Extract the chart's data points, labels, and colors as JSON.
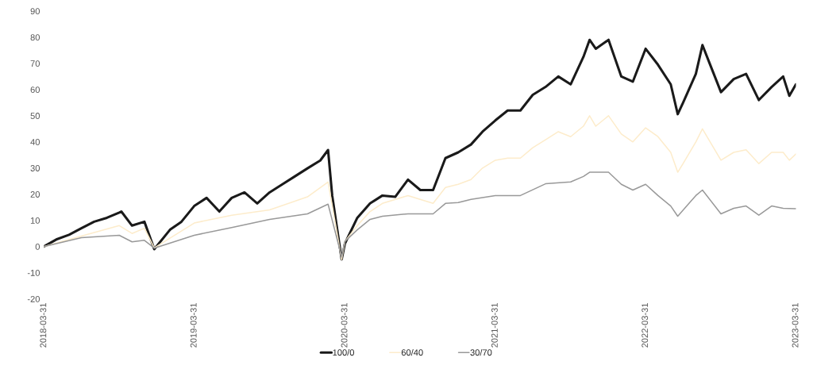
{
  "chart_data": {
    "type": "line",
    "xlim": [
      "2018-03-31",
      "2023-03-31"
    ],
    "xticks": [
      "2018-03-31",
      "2019-03-31",
      "2020-03-31",
      "2021-03-31",
      "2022-03-31",
      "2023-03-31"
    ],
    "ylim": [
      -20,
      90
    ],
    "yticks": [
      -20,
      -10,
      0,
      10,
      20,
      30,
      40,
      50,
      60,
      70,
      80,
      90
    ],
    "grid": false,
    "legend": "bottom",
    "line_style": "solid",
    "marker": "none",
    "series": [
      {
        "name": "100/0",
        "color": "#1a1a1a",
        "x": [
          "2018-03-31",
          "2018-04-30",
          "2018-05-31",
          "2018-06-30",
          "2018-07-31",
          "2018-08-31",
          "2018-09-30",
          "2018-10-05",
          "2018-10-31",
          "2018-11-30",
          "2018-12-24",
          "2019-01-31",
          "2019-02-28",
          "2019-03-31",
          "2019-04-30",
          "2019-05-31",
          "2019-06-30",
          "2019-07-31",
          "2019-08-31",
          "2019-09-30",
          "2019-10-31",
          "2019-11-30",
          "2019-12-31",
          "2020-01-31",
          "2020-02-19",
          "2020-02-29",
          "2020-03-23",
          "2020-03-31",
          "2020-04-30",
          "2020-05-31",
          "2020-06-30",
          "2020-07-31",
          "2020-08-31",
          "2020-09-30",
          "2020-10-31",
          "2020-11-30",
          "2020-12-31",
          "2021-01-31",
          "2021-02-28",
          "2021-03-31",
          "2021-04-30",
          "2021-05-31",
          "2021-06-30",
          "2021-07-31",
          "2021-08-31",
          "2021-09-30",
          "2021-10-31",
          "2021-11-15",
          "2021-11-30",
          "2021-12-31",
          "2022-01-31",
          "2022-02-28",
          "2022-03-31",
          "2022-04-30",
          "2022-05-31",
          "2022-06-17",
          "2022-06-30",
          "2022-07-31",
          "2022-08-16",
          "2022-08-31",
          "2022-09-30",
          "2022-10-31",
          "2022-11-30",
          "2022-12-31",
          "2023-01-31",
          "2023-02-28",
          "2023-03-15",
          "2023-03-31"
        ],
        "values": [
          0,
          2.7,
          4.5,
          7,
          9.5,
          11,
          13,
          13.4,
          8,
          9.5,
          -1,
          6.4,
          9.5,
          15.5,
          18.6,
          13.4,
          18.6,
          20.7,
          16.5,
          20.7,
          23.8,
          26.8,
          29.9,
          32.9,
          36.9,
          19.5,
          -4.9,
          1.2,
          11,
          16.5,
          19.5,
          19,
          25.6,
          21.6,
          21.6,
          33.8,
          36,
          39,
          43.9,
          48.2,
          52,
          52,
          58,
          61,
          65,
          62,
          72.5,
          79,
          75.6,
          79,
          65,
          63,
          75.6,
          69.5,
          62,
          50.6,
          55,
          66,
          77,
          71,
          59,
          64,
          66,
          56,
          61,
          65,
          57.6,
          62
        ]
      },
      {
        "name": "60/40",
        "color": "#fdeccb",
        "x": [
          "2018-03-31",
          "2018-06-30",
          "2018-09-30",
          "2018-10-31",
          "2018-11-30",
          "2018-12-24",
          "2019-03-31",
          "2019-06-30",
          "2019-09-30",
          "2019-12-31",
          "2020-02-19",
          "2020-03-23",
          "2020-03-31",
          "2020-04-30",
          "2020-05-31",
          "2020-06-30",
          "2020-08-31",
          "2020-10-31",
          "2020-11-30",
          "2020-12-31",
          "2021-01-31",
          "2021-02-28",
          "2021-03-31",
          "2021-04-30",
          "2021-05-31",
          "2021-06-30",
          "2021-07-31",
          "2021-08-31",
          "2021-09-30",
          "2021-10-31",
          "2021-11-15",
          "2021-11-30",
          "2021-12-31",
          "2022-01-31",
          "2022-02-28",
          "2022-03-31",
          "2022-04-30",
          "2022-05-31",
          "2022-06-17",
          "2022-06-30",
          "2022-07-31",
          "2022-08-16",
          "2022-08-31",
          "2022-09-30",
          "2022-10-31",
          "2022-11-30",
          "2022-12-31",
          "2023-01-31",
          "2023-02-28",
          "2023-03-15",
          "2023-03-31"
        ],
        "values": [
          0,
          4,
          8,
          5,
          7,
          -0.5,
          9,
          12,
          14,
          19,
          24.7,
          -5,
          2,
          8,
          13.4,
          16.5,
          19.5,
          16.5,
          22.6,
          23.8,
          25.6,
          30,
          33,
          33.8,
          33.8,
          37.8,
          40.8,
          43.9,
          42,
          46,
          50,
          46,
          50,
          43,
          40,
          45.4,
          42,
          36,
          28.4,
          31.7,
          40,
          45,
          41,
          33,
          36,
          37,
          31.7,
          36,
          36,
          33,
          35.4
        ]
      },
      {
        "name": "30/70",
        "color": "#999999",
        "x": [
          "2018-03-31",
          "2018-06-30",
          "2018-09-30",
          "2018-10-31",
          "2018-11-30",
          "2018-12-24",
          "2019-03-31",
          "2019-06-30",
          "2019-09-30",
          "2019-12-31",
          "2020-02-19",
          "2020-03-23",
          "2020-03-31",
          "2020-04-30",
          "2020-05-31",
          "2020-06-30",
          "2020-08-31",
          "2020-10-31",
          "2020-11-30",
          "2020-12-31",
          "2021-01-31",
          "2021-03-31",
          "2021-05-31",
          "2021-07-31",
          "2021-09-30",
          "2021-10-31",
          "2021-11-15",
          "2021-12-31",
          "2022-01-31",
          "2022-02-28",
          "2022-03-31",
          "2022-04-30",
          "2022-05-31",
          "2022-06-17",
          "2022-07-31",
          "2022-08-16",
          "2022-09-30",
          "2022-10-31",
          "2022-11-30",
          "2022-12-31",
          "2023-01-31",
          "2023-02-28",
          "2023-03-31"
        ],
        "values": [
          0,
          3.4,
          4.3,
          1.8,
          2.4,
          -0.6,
          4.3,
          7.3,
          10.4,
          12.5,
          16.2,
          -4,
          2,
          6.4,
          10.4,
          11.6,
          12.5,
          12.5,
          16.5,
          16.8,
          18,
          19.5,
          19.5,
          24,
          24.7,
          26.8,
          28.4,
          28.4,
          23.8,
          21.6,
          23.8,
          19.5,
          15.5,
          11.6,
          19.5,
          21.6,
          12.5,
          14.6,
          15.5,
          12,
          15.5,
          14.6,
          14.5
        ]
      }
    ]
  }
}
